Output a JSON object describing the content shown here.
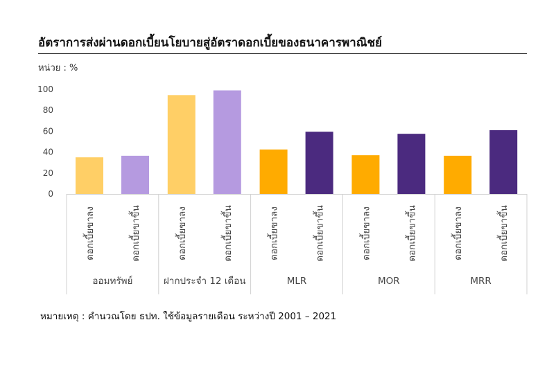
{
  "header": {
    "title": "อัตราการส่งผ่านดอกเบี้ยนโยบายสู่อัตราดอกเบี้ยของธนาคารพาณิชย์",
    "unit_label": "หน่วย : %"
  },
  "footnote": "หมายเหตุ : คำนวณโดย ธปท. ใช้ข้อมูลรายเดือน ระหว่างปี 2001 – 2021",
  "chart_data": {
    "type": "bar",
    "title": "อัตราการส่งผ่านดอกเบี้ยนโยบายสู่อัตราดอกเบี้ยของธนาคารพาณิชย์",
    "ylabel": "หน่วย : %",
    "ylim": [
      0,
      100
    ],
    "yticks": [
      0,
      20,
      40,
      60,
      80,
      100
    ],
    "grid": false,
    "groups": [
      {
        "label": "ออมทรัพย์",
        "bars": [
          {
            "label": "ดอกเบี้ยขาลง",
            "value": 35,
            "color": "#FFCF66"
          },
          {
            "label": "ดอกเบี้ยขาขึ้น",
            "value": 36.5,
            "color": "#B59AE0"
          }
        ]
      },
      {
        "label": "ฝากประจำ 12 เดือน",
        "bars": [
          {
            "label": "ดอกเบี้ยขาลง",
            "value": 94.5,
            "color": "#FFCF66"
          },
          {
            "label": "ดอกเบี้ยขาขึ้น",
            "value": 99,
            "color": "#B59AE0"
          }
        ]
      },
      {
        "label": "MLR",
        "bars": [
          {
            "label": "ดอกเบี้ยขาลง",
            "value": 42.5,
            "color": "#FFAB00"
          },
          {
            "label": "ดอกเบี้ยขาขึ้น",
            "value": 59.5,
            "color": "#4B2A7F"
          }
        ]
      },
      {
        "label": "MOR",
        "bars": [
          {
            "label": "ดอกเบี้ยขาลง",
            "value": 37,
            "color": "#FFAB00"
          },
          {
            "label": "ดอกเบี้ยขาขึ้น",
            "value": 57.5,
            "color": "#4B2A7F"
          }
        ]
      },
      {
        "label": "MRR",
        "bars": [
          {
            "label": "ดอกเบี้ยขาลง",
            "value": 36.5,
            "color": "#FFAB00"
          },
          {
            "label": "ดอกเบี้ยขาขึ้น",
            "value": 61,
            "color": "#4B2A7F"
          }
        ]
      }
    ]
  }
}
